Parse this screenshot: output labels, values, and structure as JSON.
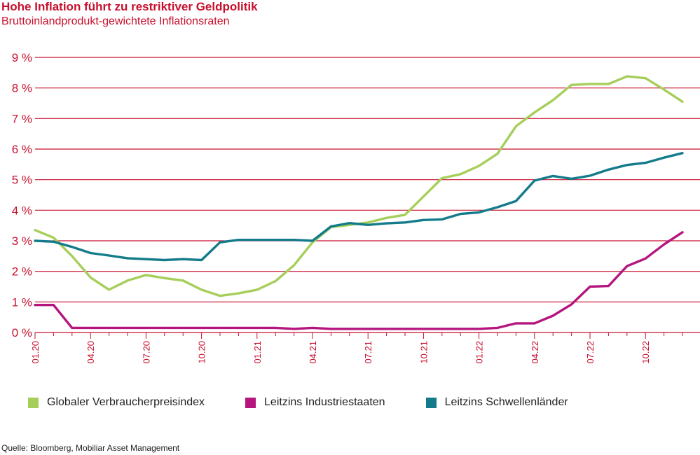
{
  "header": {
    "title": "Hohe Inflation führt zu restriktiver Geldpolitik",
    "subtitle": "Bruttoinlandprodukt-gewichtete Inflationsraten"
  },
  "source": "Quelle: Bloomberg, Mobiliar Asset Management",
  "colors": {
    "grid": "#c8102e",
    "axis_text": "#c8102e",
    "cpi": "#a6ce5b",
    "industrial": "#b5157e",
    "emerging": "#137b8a"
  },
  "chart_data": {
    "type": "line",
    "title": "Hohe Inflation führt zu restriktiver Geldpolitik",
    "subtitle": "Bruttoinlandprodukt-gewichtete Inflationsraten",
    "ylim": [
      0,
      9
    ],
    "yticks": [
      "0 %",
      "1 %",
      "2 %",
      "3 %",
      "4 %",
      "5 %",
      "6 %",
      "7 %",
      "8 %",
      "9 %"
    ],
    "grid": true,
    "legend_position": "bottom",
    "x": [
      "01.20",
      "02.20",
      "03.20",
      "04.20",
      "05.20",
      "06.20",
      "07.20",
      "08.20",
      "09.20",
      "10.20",
      "11.20",
      "12.20",
      "01.21",
      "02.21",
      "03.21",
      "04.21",
      "05.21",
      "06.21",
      "07.21",
      "08.21",
      "09.21",
      "10.21",
      "11.21",
      "12.21",
      "01.22",
      "02.22",
      "03.22",
      "04.22",
      "05.22",
      "06.22",
      "07.22",
      "08.22",
      "09.22",
      "10.22",
      "11.22",
      "12.22"
    ],
    "xtick_labels": [
      "01.20",
      "04.20",
      "07.20",
      "10.20",
      "01.21",
      "04.21",
      "07.21",
      "10.21",
      "01.22",
      "04.22",
      "07.22",
      "10.22"
    ],
    "series": [
      {
        "name": "Globaler Verbraucherpreisindex",
        "color": "#a6ce5b",
        "values": [
          3.35,
          3.1,
          2.5,
          1.8,
          1.4,
          1.7,
          1.88,
          1.78,
          1.7,
          1.4,
          1.2,
          1.28,
          1.4,
          1.68,
          2.2,
          2.95,
          3.45,
          3.52,
          3.6,
          3.75,
          3.85,
          4.45,
          5.05,
          5.18,
          5.45,
          5.85,
          6.75,
          7.2,
          7.6,
          8.1,
          8.13,
          8.13,
          8.38,
          8.32,
          7.95,
          7.55
        ]
      },
      {
        "name": "Leitzins Industriestaaten",
        "color": "#b5157e",
        "values": [
          0.9,
          0.9,
          0.15,
          0.15,
          0.15,
          0.15,
          0.15,
          0.15,
          0.15,
          0.15,
          0.15,
          0.15,
          0.15,
          0.15,
          0.12,
          0.15,
          0.12,
          0.12,
          0.12,
          0.12,
          0.12,
          0.12,
          0.12,
          0.12,
          0.12,
          0.15,
          0.3,
          0.3,
          0.55,
          0.92,
          1.5,
          1.52,
          2.17,
          2.42,
          2.88,
          3.28
        ]
      },
      {
        "name": "Leitzins Schwellenländer",
        "color": "#137b8a",
        "values": [
          3.0,
          2.97,
          2.8,
          2.6,
          2.52,
          2.43,
          2.4,
          2.37,
          2.4,
          2.37,
          2.95,
          3.03,
          3.03,
          3.03,
          3.03,
          3.0,
          3.47,
          3.58,
          3.52,
          3.57,
          3.6,
          3.68,
          3.7,
          3.88,
          3.93,
          4.1,
          4.3,
          4.97,
          5.12,
          5.03,
          5.13,
          5.33,
          5.48,
          5.55,
          5.72,
          5.87
        ]
      }
    ]
  }
}
